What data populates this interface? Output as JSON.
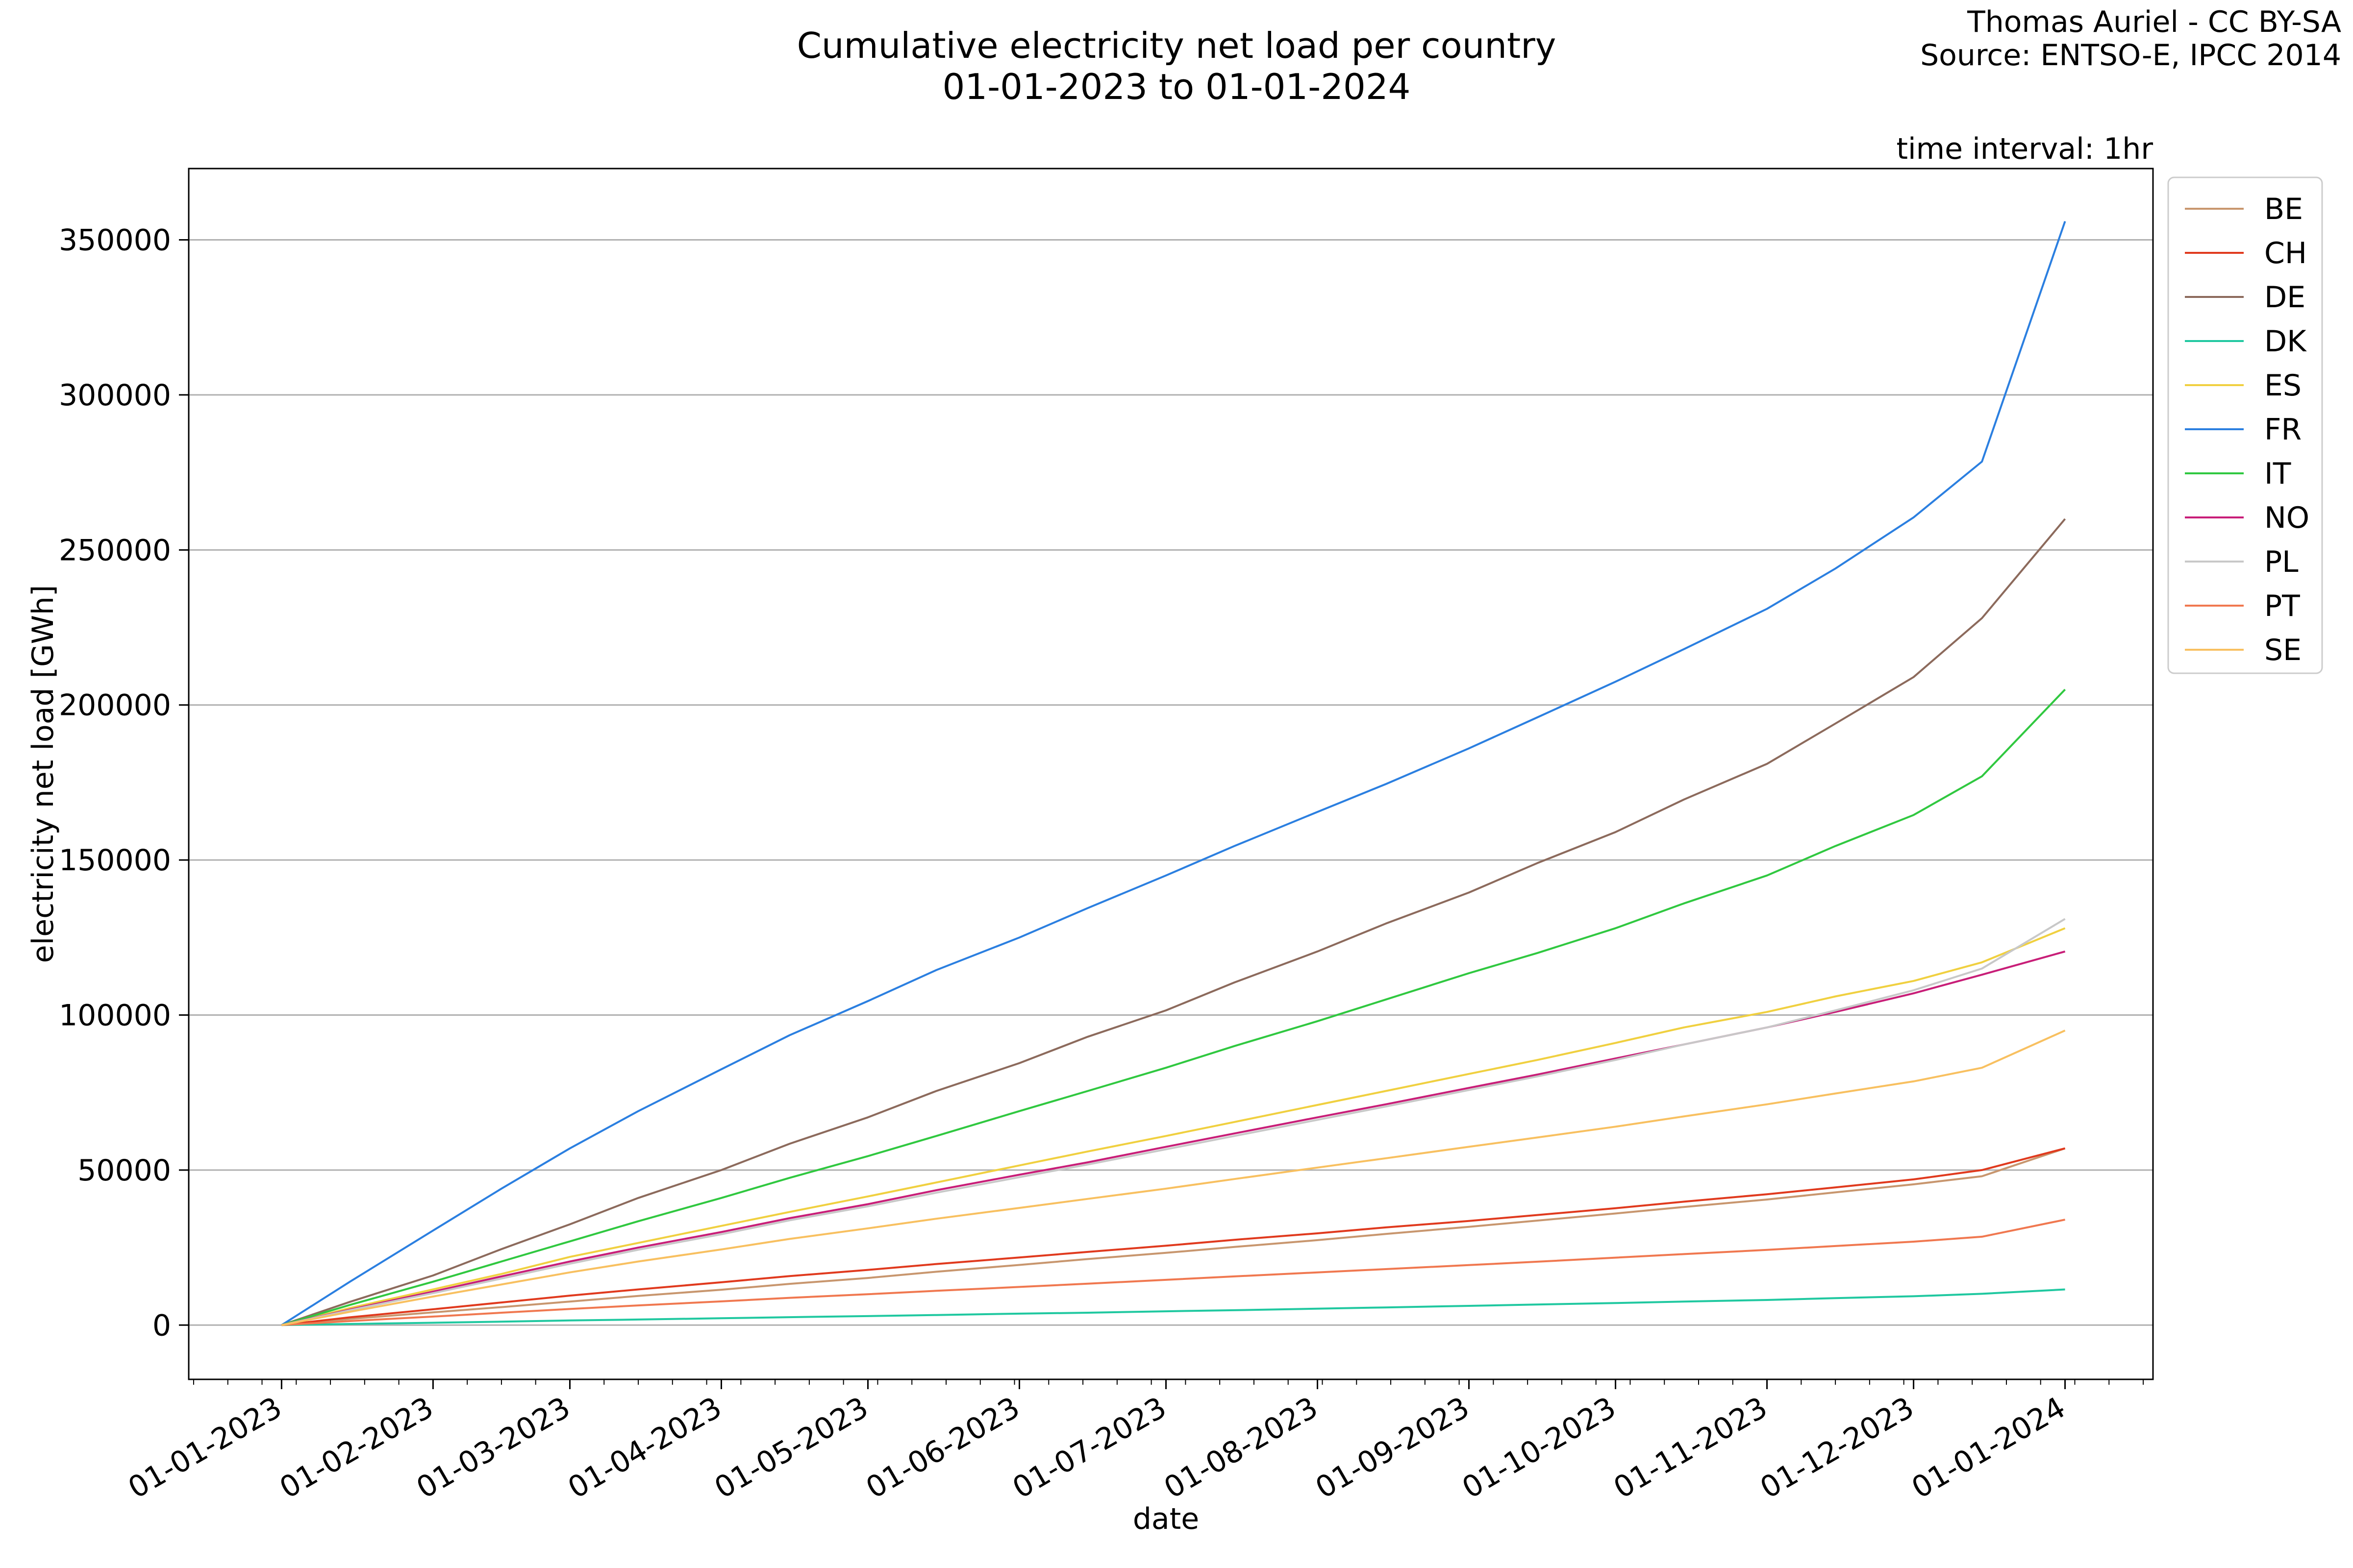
{
  "header": {
    "title_line1": "Cumulative electricity net load per country",
    "title_line2": "01-01-2023 to 01-01-2024",
    "credit_line1": "Thomas Auriel - CC BY-SA",
    "credit_line2": "Source: ENTSO-E, IPCC 2014"
  },
  "chart_data": {
    "type": "line",
    "title": "Cumulative electricity net load per country",
    "subtitle": "01-01-2023 to 01-01-2024",
    "annotation": "time interval: 1hr",
    "xlabel": "date",
    "ylabel": "electricity net load [GWh]",
    "xlim": [
      "2022-12-13",
      "2024-01-19"
    ],
    "ylim": [
      -17500,
      373000
    ],
    "x_ticks": [
      "01-01-2023",
      "01-02-2023",
      "01-03-2023",
      "01-04-2023",
      "01-05-2023",
      "01-06-2023",
      "01-07-2023",
      "01-08-2023",
      "01-09-2023",
      "01-10-2023",
      "01-11-2023",
      "01-12-2023",
      "01-01-2024"
    ],
    "y_ticks": [
      0,
      50000,
      100000,
      150000,
      200000,
      250000,
      300000,
      350000
    ],
    "y_grid": true,
    "legend_position": "outside-right",
    "x": [
      "2023-01-01",
      "2023-01-15",
      "2023-02-01",
      "2023-02-15",
      "2023-03-01",
      "2023-03-15",
      "2023-04-01",
      "2023-04-15",
      "2023-05-01",
      "2023-05-15",
      "2023-06-01",
      "2023-06-15",
      "2023-07-01",
      "2023-07-15",
      "2023-08-01",
      "2023-08-15",
      "2023-09-01",
      "2023-09-15",
      "2023-10-01",
      "2023-10-15",
      "2023-11-01",
      "2023-11-15",
      "2023-12-01",
      "2023-12-15",
      "2024-01-01"
    ],
    "series": [
      {
        "name": "BE",
        "color": "#c8966e",
        "values": [
          0,
          2000,
          4100,
          5800,
          7600,
          9400,
          11400,
          13300,
          15200,
          17200,
          19400,
          21300,
          23300,
          25200,
          27400,
          29400,
          31700,
          33700,
          36000,
          38100,
          40500,
          42800,
          45400,
          48000,
          57000
        ]
      },
      {
        "name": "CH",
        "color": "#e03a1e",
        "values": [
          0,
          2500,
          5100,
          7300,
          9500,
          11500,
          13800,
          15800,
          17800,
          19700,
          21800,
          23600,
          25600,
          27500,
          29600,
          31500,
          33600,
          35500,
          37700,
          39800,
          42200,
          44400,
          47000,
          50000,
          57000
        ]
      },
      {
        "name": "DE",
        "color": "#8c6a5c",
        "values": [
          0,
          7500,
          16000,
          24500,
          32500,
          41000,
          50000,
          58500,
          67000,
          75500,
          84500,
          93000,
          101500,
          110500,
          120500,
          129500,
          139500,
          149000,
          159000,
          169500,
          181000,
          194000,
          209000,
          228000,
          260000
        ]
      },
      {
        "name": "DK",
        "color": "#20c8a0",
        "values": [
          0,
          350,
          750,
          1100,
          1500,
          1800,
          2200,
          2550,
          2900,
          3250,
          3700,
          4000,
          4450,
          4800,
          5300,
          5700,
          6200,
          6650,
          7100,
          7600,
          8100,
          8700,
          9300,
          10100,
          11500
        ]
      },
      {
        "name": "ES",
        "color": "#f0d040",
        "values": [
          0,
          5500,
          11500,
          16500,
          22000,
          26500,
          32000,
          36500,
          41500,
          46000,
          51500,
          56000,
          61000,
          65500,
          71000,
          75500,
          81000,
          85500,
          91000,
          96000,
          101000,
          106000,
          111000,
          117000,
          128000
        ]
      },
      {
        "name": "FR",
        "color": "#2b7fe0",
        "values": [
          0,
          14000,
          30500,
          44000,
          57000,
          69000,
          82500,
          93500,
          104500,
          114500,
          125000,
          134500,
          145000,
          154500,
          165500,
          174500,
          186000,
          196000,
          207500,
          218000,
          231000,
          244000,
          260500,
          278500,
          356000
        ]
      },
      {
        "name": "IT",
        "color": "#30c840",
        "values": [
          0,
          6500,
          14000,
          20500,
          27000,
          33500,
          41000,
          47500,
          54500,
          61000,
          69000,
          75500,
          83000,
          90000,
          98000,
          105000,
          113500,
          120000,
          128000,
          136000,
          145000,
          154500,
          164500,
          177000,
          205000
        ]
      },
      {
        "name": "NO",
        "color": "#c81e78",
        "values": [
          0,
          5000,
          10800,
          15700,
          20500,
          25000,
          30000,
          34500,
          39000,
          43500,
          48500,
          52500,
          57500,
          61800,
          67000,
          71200,
          76500,
          80800,
          86000,
          90500,
          96000,
          101000,
          107000,
          113000,
          120500
        ]
      },
      {
        "name": "PL",
        "color": "#c8c8c8",
        "values": [
          0,
          4800,
          10300,
          15000,
          19800,
          24300,
          29300,
          33800,
          38300,
          42700,
          47700,
          51800,
          56700,
          61000,
          66200,
          70500,
          75800,
          80200,
          85500,
          90500,
          96000,
          101500,
          108000,
          115000,
          131000
        ]
      },
      {
        "name": "PT",
        "color": "#f07850",
        "values": [
          0,
          1300,
          2750,
          4000,
          5200,
          6350,
          7650,
          8800,
          9950,
          11050,
          12300,
          13350,
          14600,
          15700,
          17000,
          18050,
          19350,
          20450,
          21750,
          22900,
          24250,
          25500,
          26900,
          28500,
          34000
        ]
      },
      {
        "name": "SE",
        "color": "#f8c060",
        "values": [
          0,
          4300,
          9200,
          13100,
          17000,
          20500,
          24400,
          27800,
          31200,
          34300,
          37800,
          40700,
          44000,
          47100,
          50800,
          53800,
          57500,
          60500,
          64000,
          67300,
          71200,
          74700,
          78600,
          83000,
          95000
        ]
      }
    ]
  }
}
